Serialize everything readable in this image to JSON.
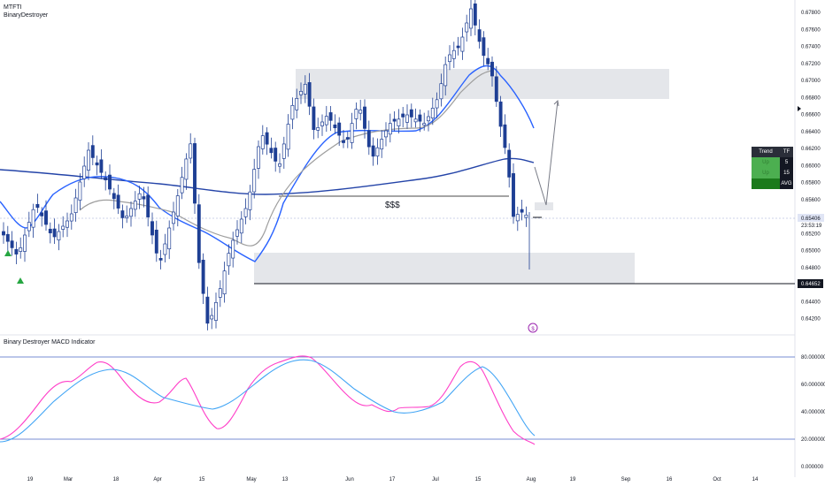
{
  "header": {
    "symbol": "MTFTI",
    "author": "BinaryDestroyer"
  },
  "indicator_title": "Binary Destroyer MACD Indicator",
  "annotation_text": "$$$",
  "colors": {
    "bull": "#ffffff",
    "bear": "#1e3f94",
    "ma_blue": "#2962ff",
    "ma_grey": "#9e9e9e",
    "zone": "#e4e6ea",
    "macd_pink": "#ff3ec8",
    "macd_blue": "#42a5f5",
    "signal_green": "#26a641"
  },
  "price_axis": {
    "labels": [
      "0.67800",
      "0.67600",
      "0.67400",
      "0.67200",
      "0.67000",
      "0.66800",
      "0.66600",
      "0.66400",
      "0.66200",
      "0.66000",
      "0.65800",
      "0.65600",
      "0.65400",
      "0.65200",
      "0.65000",
      "0.64800",
      "0.64600",
      "0.64400",
      "0.64200"
    ],
    "current_price": "0.65406",
    "countdown": "23:53:19",
    "level_price": "0.64652"
  },
  "osc_axis": {
    "labels": [
      "80.000000",
      "60.000000",
      "40.000000",
      "20.000000",
      "0.000000"
    ]
  },
  "time_axis": {
    "labels": [
      "19",
      "Mar",
      "18",
      "Apr",
      "15",
      "May",
      "13",
      "Jun",
      "17",
      "Jul",
      "15",
      "Aug",
      "19",
      "Sep",
      "16",
      "Oct",
      "14"
    ]
  },
  "trend_table": {
    "header_left": "Trend",
    "header_right": "TF",
    "rows": [
      {
        "trend": "Up",
        "tf": "5"
      },
      {
        "trend": "Up",
        "tf": "15"
      }
    ],
    "footer": "AVG"
  },
  "chart_data": {
    "type": "candlestick",
    "symbol": "MTFTI",
    "y_range": [
      0.641,
      0.679
    ],
    "current_price": 0.65406,
    "horizontal_level": 0.64652,
    "supply_zone": [
      0.6679,
      0.6713
    ],
    "demand_zone": [
      0.6466,
      0.6501
    ],
    "liquidity_line": 0.6567,
    "oscillator": {
      "title": "Binary Destroyer MACD Indicator",
      "levels": [
        80,
        20
      ],
      "range": [
        0,
        80
      ]
    }
  }
}
